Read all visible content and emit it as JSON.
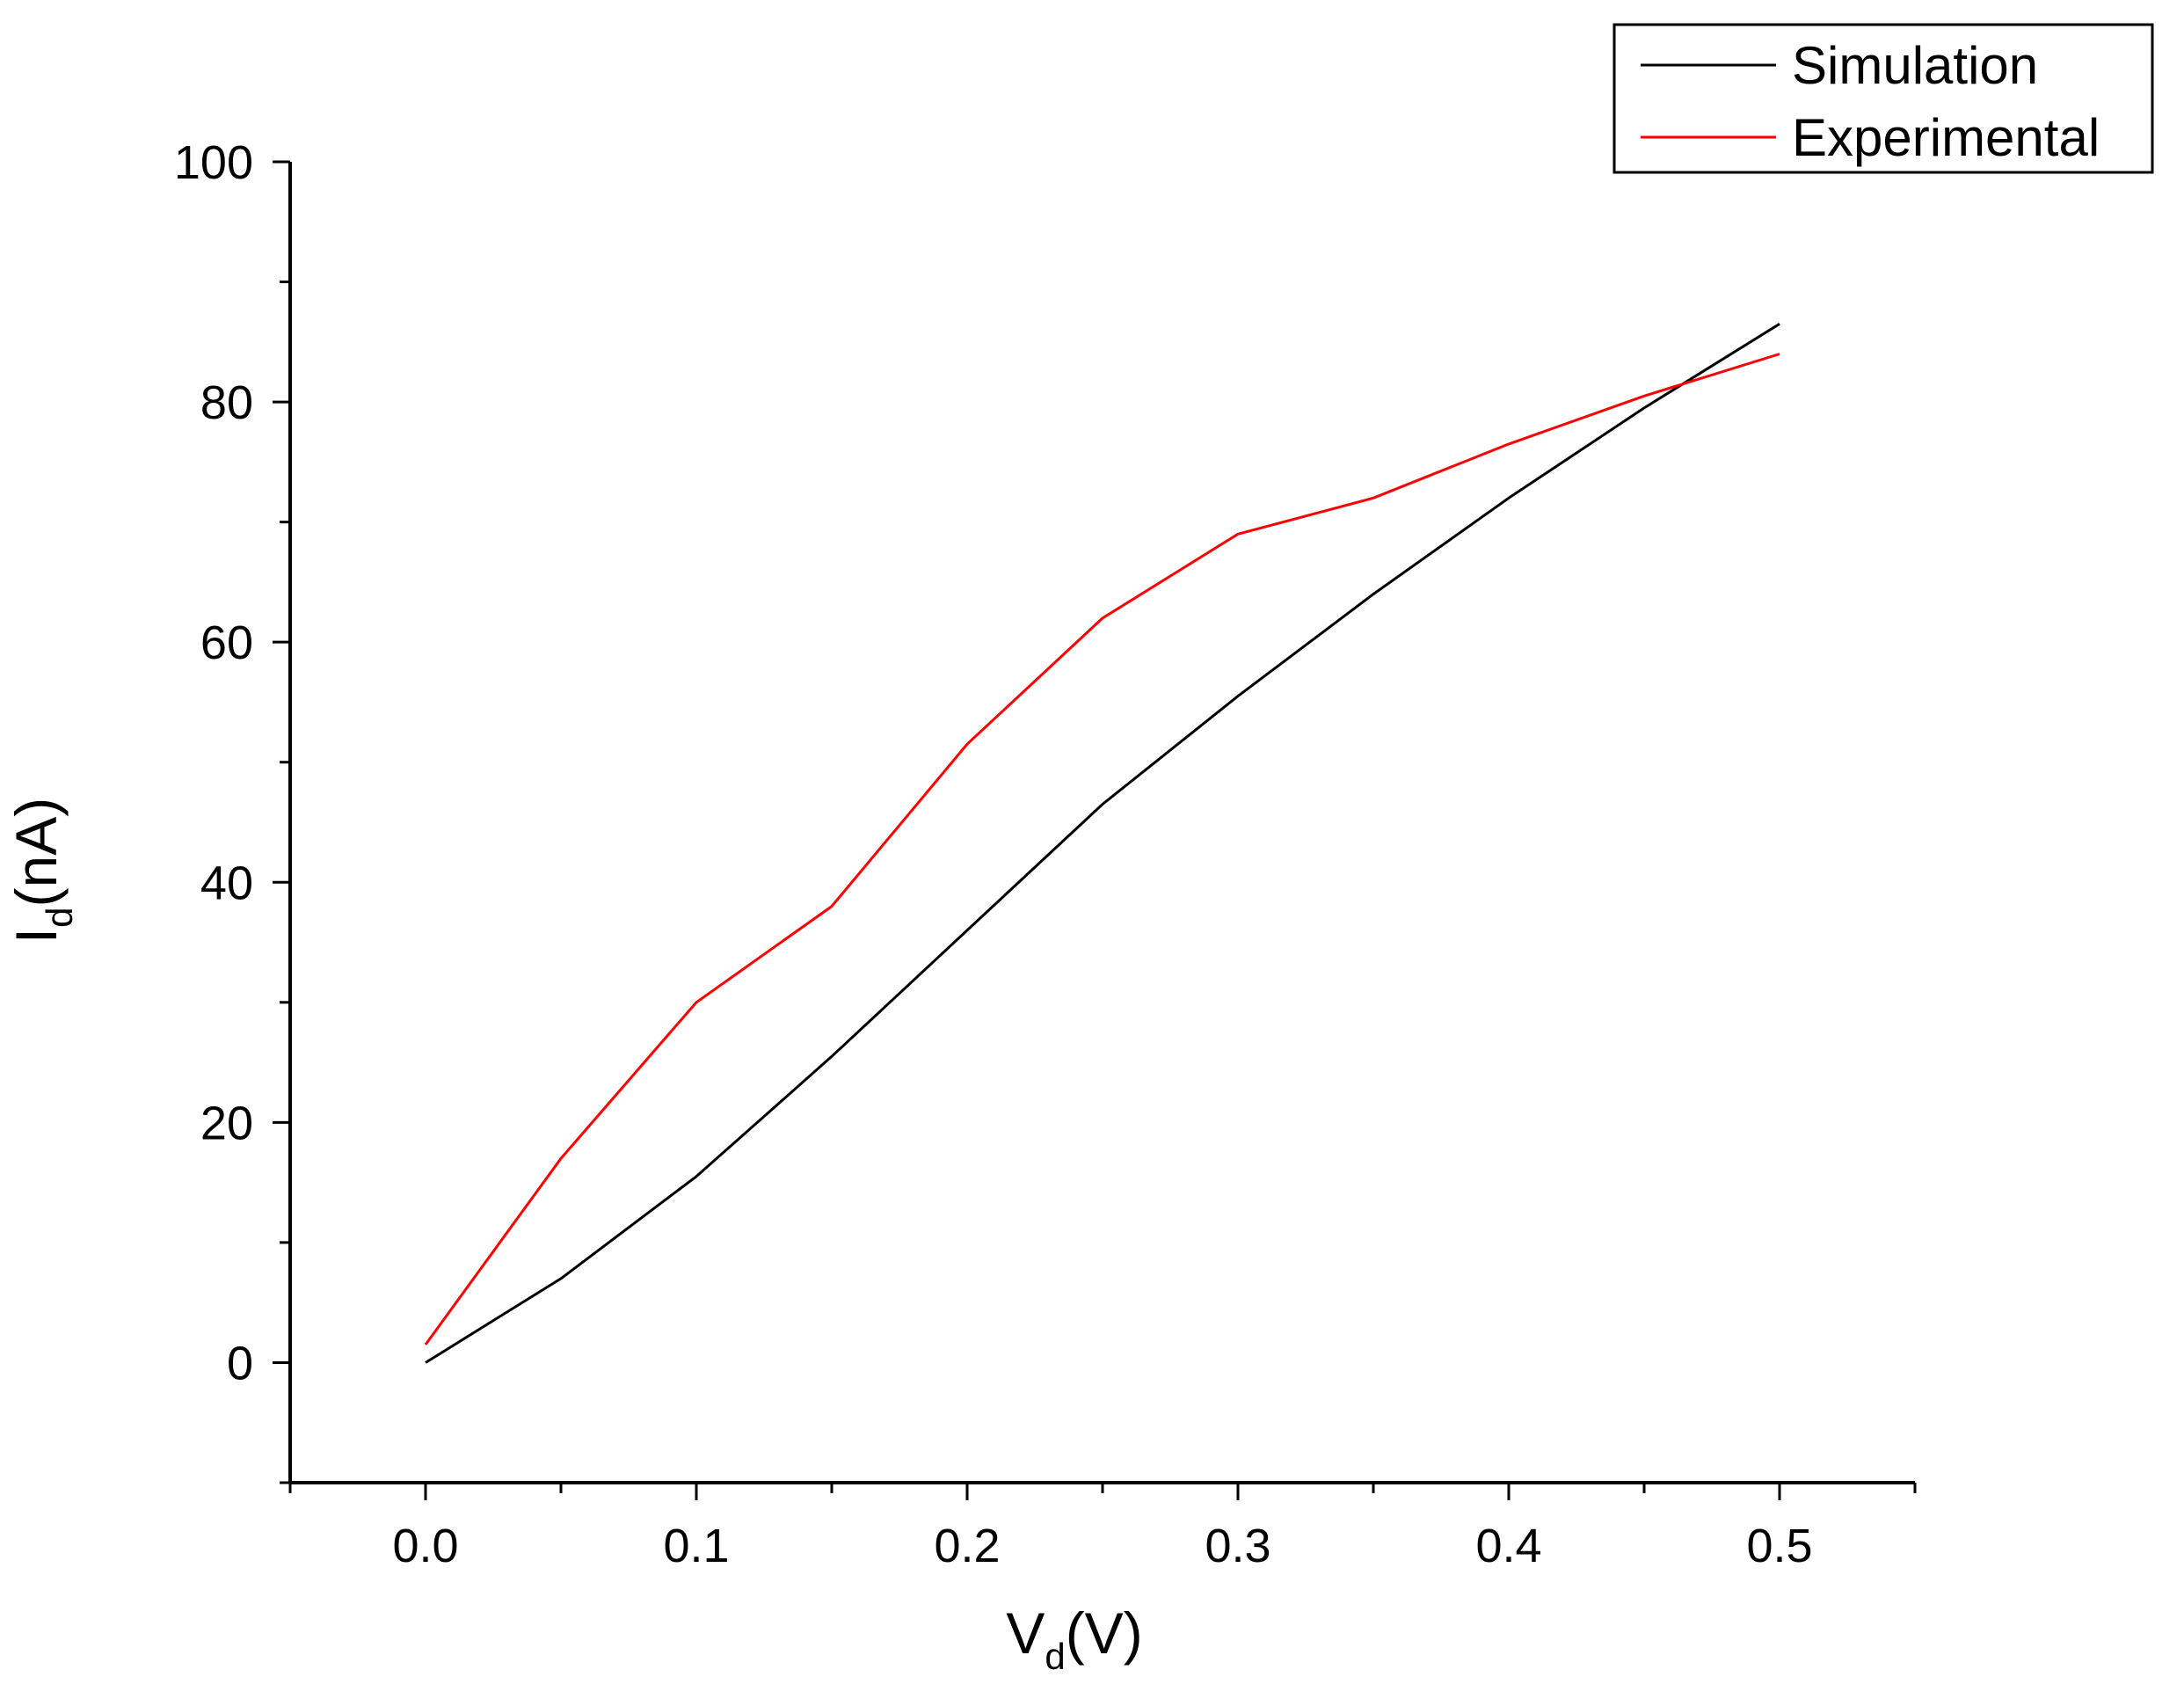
{
  "chart_data": {
    "type": "line",
    "title": "",
    "xlabel": {
      "main": "V",
      "sub": "d",
      "rest": "(V)"
    },
    "ylabel": {
      "main": "I",
      "sub": "d",
      "rest": "(nA)"
    },
    "xlim": [
      -0.05,
      0.55
    ],
    "ylim": [
      -10,
      100
    ],
    "xticks": [
      0.0,
      0.1,
      0.2,
      0.3,
      0.4,
      0.5
    ],
    "xtick_labels": [
      "0.0",
      "0.1",
      "0.2",
      "0.3",
      "0.4",
      "0.5"
    ],
    "yticks": [
      0,
      20,
      40,
      60,
      80,
      100
    ],
    "ytick_labels": [
      "0",
      "20",
      "40",
      "60",
      "80",
      "100"
    ],
    "x_minor_step": 0.05,
    "y_minor_step": 10,
    "grid": false,
    "legend_position": "top-right",
    "series": [
      {
        "name": "Simulation",
        "color": "#000000",
        "x": [
          0.0,
          0.05,
          0.1,
          0.15,
          0.2,
          0.25,
          0.3,
          0.35,
          0.4,
          0.45,
          0.5
        ],
        "y": [
          0.0,
          7.0,
          15.5,
          25.5,
          36.0,
          46.5,
          55.5,
          64.0,
          72.0,
          79.5,
          86.5
        ]
      },
      {
        "name": "Experimental",
        "color": "#ff0000",
        "x": [
          0.0,
          0.05,
          0.1,
          0.15,
          0.2,
          0.25,
          0.3,
          0.35,
          0.4,
          0.45,
          0.5
        ],
        "y": [
          1.5,
          17.0,
          30.0,
          38.0,
          51.5,
          62.0,
          69.0,
          72.0,
          76.5,
          80.5,
          84.0
        ]
      }
    ]
  }
}
